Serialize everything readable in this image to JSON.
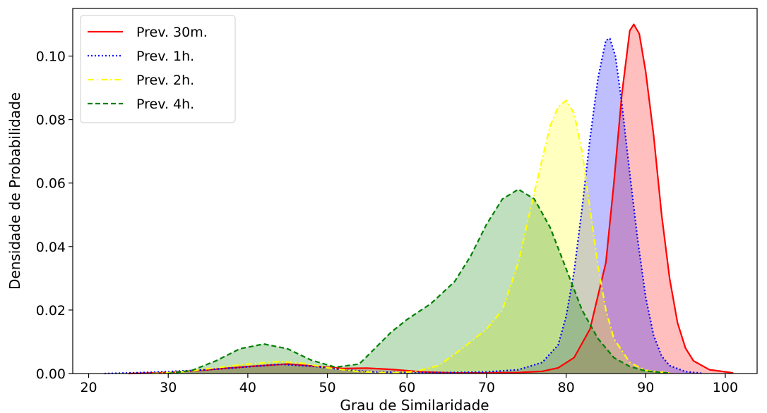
{
  "chart_data": {
    "type": "area",
    "title": "",
    "xlabel": "Grau de Similaridade",
    "ylabel": "Densidade de Probabilidade",
    "xlim": [
      18,
      104
    ],
    "ylim": [
      0,
      0.115
    ],
    "x_ticks": [
      20,
      30,
      40,
      50,
      60,
      70,
      80,
      90,
      100
    ],
    "y_ticks": [
      0.0,
      0.02,
      0.04,
      0.06,
      0.08,
      0.1
    ],
    "y_tick_labels": [
      "0.00",
      "0.02",
      "0.04",
      "0.06",
      "0.08",
      "0.10"
    ],
    "grid": false,
    "legend_position": "top-left",
    "series": [
      {
        "name": "Prev. 30m.",
        "color": "#ff0000",
        "fill": "#ff0000",
        "line_style": "solid",
        "points": [
          [
            25,
            0
          ],
          [
            30,
            0.0003
          ],
          [
            35,
            0.0012
          ],
          [
            40,
            0.0022
          ],
          [
            45,
            0.003
          ],
          [
            48,
            0.0024
          ],
          [
            52,
            0.0016
          ],
          [
            55,
            0.0017
          ],
          [
            58,
            0.0013
          ],
          [
            62,
            0.0005
          ],
          [
            66,
            0.0002
          ],
          [
            70,
            0.0002
          ],
          [
            74,
            0.0003
          ],
          [
            77,
            0.0007
          ],
          [
            79,
            0.0018
          ],
          [
            81,
            0.005
          ],
          [
            83,
            0.014
          ],
          [
            85,
            0.035
          ],
          [
            86,
            0.06
          ],
          [
            87,
            0.088
          ],
          [
            88,
            0.108
          ],
          [
            88.5,
            0.11
          ],
          [
            89.2,
            0.107
          ],
          [
            90,
            0.095
          ],
          [
            91,
            0.075
          ],
          [
            92,
            0.05
          ],
          [
            93,
            0.03
          ],
          [
            94,
            0.016
          ],
          [
            95,
            0.008
          ],
          [
            96,
            0.004
          ],
          [
            98,
            0.0012
          ],
          [
            101,
            0.0002
          ]
        ]
      },
      {
        "name": "Prev. 1h.",
        "color": "#0000ff",
        "fill": "#0000ff",
        "line_style": "dotted",
        "points": [
          [
            22,
            0
          ],
          [
            28,
            0.0004
          ],
          [
            35,
            0.0012
          ],
          [
            40,
            0.0021
          ],
          [
            44,
            0.0029
          ],
          [
            48,
            0.0023
          ],
          [
            52,
            0.0012
          ],
          [
            56,
            0.0005
          ],
          [
            60,
            0.0003
          ],
          [
            65,
            0.0003
          ],
          [
            70,
            0.0005
          ],
          [
            74,
            0.0012
          ],
          [
            77,
            0.0035
          ],
          [
            79,
            0.009
          ],
          [
            80,
            0.018
          ],
          [
            81,
            0.032
          ],
          [
            82,
            0.052
          ],
          [
            83,
            0.074
          ],
          [
            84,
            0.093
          ],
          [
            85,
            0.105
          ],
          [
            85.5,
            0.1055
          ],
          [
            86.2,
            0.1
          ],
          [
            87,
            0.085
          ],
          [
            88,
            0.063
          ],
          [
            89,
            0.042
          ],
          [
            90,
            0.024
          ],
          [
            91,
            0.012
          ],
          [
            92,
            0.0055
          ],
          [
            93,
            0.0025
          ],
          [
            95,
            0.0006
          ],
          [
            97,
            0.0001
          ]
        ]
      },
      {
        "name": "Prev. 2h.",
        "color": "#ffff00",
        "fill": "#ffff00",
        "line_style": "dashdot",
        "points": [
          [
            28,
            0
          ],
          [
            32,
            0.0006
          ],
          [
            36,
            0.0018
          ],
          [
            40,
            0.003
          ],
          [
            44,
            0.0038
          ],
          [
            47,
            0.0032
          ],
          [
            50,
            0.0018
          ],
          [
            54,
            0.0006
          ],
          [
            58,
            0.0002
          ],
          [
            61,
            0.0006
          ],
          [
            64,
            0.0025
          ],
          [
            67,
            0.008
          ],
          [
            70,
            0.014
          ],
          [
            72,
            0.02
          ],
          [
            74,
            0.035
          ],
          [
            76,
            0.057
          ],
          [
            78,
            0.078
          ],
          [
            79,
            0.084
          ],
          [
            80,
            0.086
          ],
          [
            81,
            0.082
          ],
          [
            82,
            0.07
          ],
          [
            83,
            0.052
          ],
          [
            84,
            0.034
          ],
          [
            85,
            0.02
          ],
          [
            86,
            0.011
          ],
          [
            88,
            0.0035
          ],
          [
            90,
            0.001
          ],
          [
            93,
            0.0002
          ]
        ]
      },
      {
        "name": "Prev. 4h.",
        "color": "#008000",
        "fill": "#008000",
        "line_style": "dashed",
        "points": [
          [
            30,
            0
          ],
          [
            33,
            0.001
          ],
          [
            36,
            0.004
          ],
          [
            39,
            0.0078
          ],
          [
            42,
            0.0093
          ],
          [
            45,
            0.0078
          ],
          [
            48,
            0.0042
          ],
          [
            51,
            0.002
          ],
          [
            54,
            0.003
          ],
          [
            56,
            0.008
          ],
          [
            58,
            0.013
          ],
          [
            60,
            0.017
          ],
          [
            63,
            0.022
          ],
          [
            66,
            0.029
          ],
          [
            68,
            0.037
          ],
          [
            70,
            0.047
          ],
          [
            72,
            0.055
          ],
          [
            74,
            0.058
          ],
          [
            76,
            0.055
          ],
          [
            78,
            0.046
          ],
          [
            80,
            0.033
          ],
          [
            82,
            0.02
          ],
          [
            84,
            0.011
          ],
          [
            86,
            0.005
          ],
          [
            88,
            0.0022
          ],
          [
            90,
            0.0008
          ],
          [
            93,
            0.0001
          ]
        ]
      }
    ]
  }
}
